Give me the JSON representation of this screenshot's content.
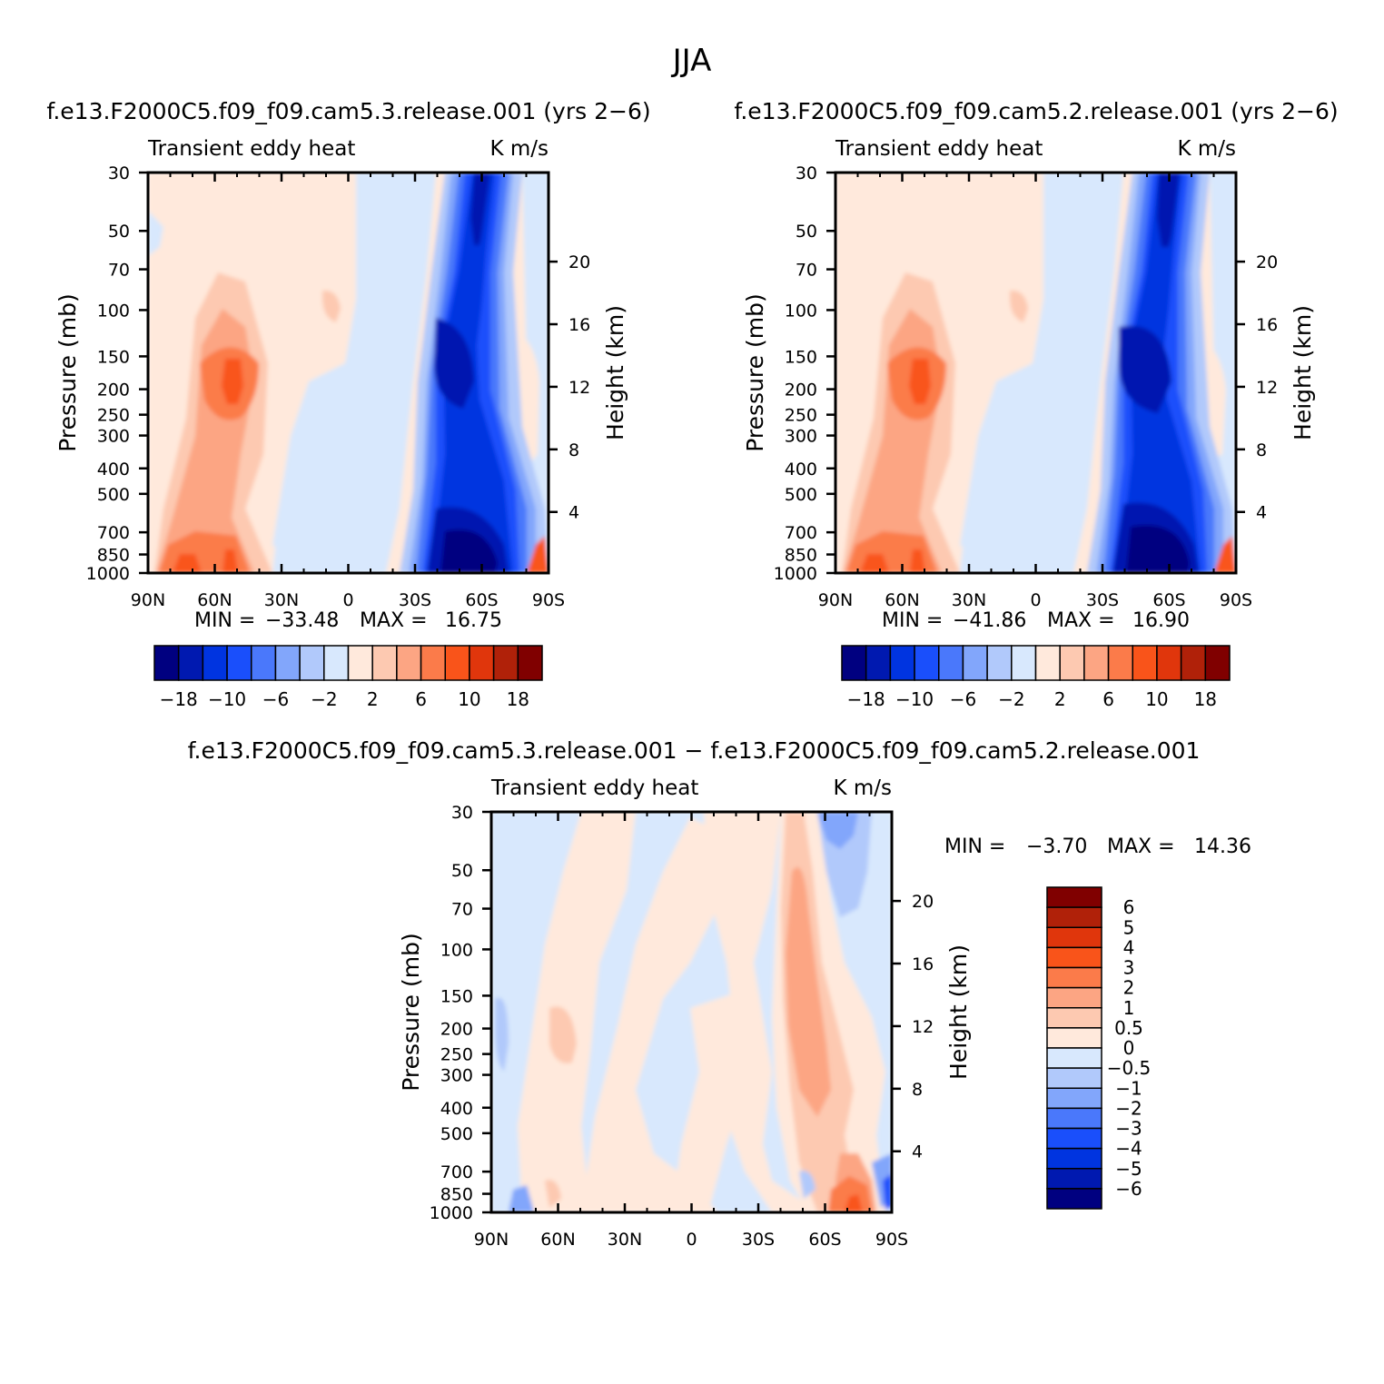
{
  "title": "JJA",
  "colors": {
    "panel_scale": [
      "#000080",
      "#0019b0",
      "#0034e0",
      "#1a4ffb",
      "#4a78fb",
      "#82a6fb",
      "#b1c9fb",
      "#d8e8fd",
      "#ffe9dc",
      "#fdc9b1",
      "#fca583",
      "#fb7b4a",
      "#f9541a",
      "#e0360c",
      "#b02109",
      "#800000"
    ],
    "diff_scale": [
      "#000080",
      "#0019b0",
      "#0034e0",
      "#1a4ffb",
      "#4a78fb",
      "#82a6fb",
      "#b1c9fb",
      "#d8e8fd",
      "#ffe9dc",
      "#fdc9b1",
      "#fca583",
      "#fb7b4a",
      "#f9541a",
      "#e0360c",
      "#b02109",
      "#800000"
    ]
  },
  "chart_data": [
    {
      "type": "heatmap",
      "id": "p1",
      "title": "f.e13.F2000C5.f09_f09.cam5.3.release.001 (yrs 2−6)",
      "label_left": "Transient eddy heat",
      "label_right": "K m/s",
      "ylabel": "Pressure (mb)",
      "ylabel_right": "Height (km)",
      "x_ticks": [
        "90N",
        "60N",
        "30N",
        "0",
        "30S",
        "60S",
        "90S"
      ],
      "y_ticks": [
        "30",
        "50",
        "70",
        "100",
        "150",
        "200",
        "250",
        "300",
        "400",
        "500",
        "700",
        "850",
        "1000"
      ],
      "y_right_ticks": [
        "20",
        "16",
        "12",
        "8",
        "4"
      ],
      "min_label": "MIN =",
      "min_value": "−33.48",
      "max_label": "MAX =",
      "max_value": "16.75",
      "colorbar_labels": [
        "−18",
        "−10",
        "−6",
        "−2",
        "2",
        "6",
        "10",
        "18"
      ]
    },
    {
      "type": "heatmap",
      "id": "p2",
      "title": "f.e13.F2000C5.f09_f09.cam5.2.release.001 (yrs 2−6)",
      "label_left": "Transient eddy heat",
      "label_right": "K m/s",
      "ylabel": "Pressure (mb)",
      "ylabel_right": "Height (km)",
      "x_ticks": [
        "90N",
        "60N",
        "30N",
        "0",
        "30S",
        "60S",
        "90S"
      ],
      "y_ticks": [
        "30",
        "50",
        "70",
        "100",
        "150",
        "200",
        "250",
        "300",
        "400",
        "500",
        "700",
        "850",
        "1000"
      ],
      "y_right_ticks": [
        "20",
        "16",
        "12",
        "8",
        "4"
      ],
      "min_label": "MIN =",
      "min_value": "−41.86",
      "max_label": "MAX =",
      "max_value": "16.90",
      "colorbar_labels": [
        "−18",
        "−10",
        "−6",
        "−2",
        "2",
        "6",
        "10",
        "18"
      ]
    },
    {
      "type": "heatmap",
      "id": "p3",
      "title": "f.e13.F2000C5.f09_f09.cam5.3.release.001 − f.e13.F2000C5.f09_f09.cam5.2.release.001",
      "label_left": "Transient eddy heat",
      "label_right": "K m/s",
      "ylabel": "Pressure (mb)",
      "ylabel_right": "Height (km)",
      "x_ticks": [
        "90N",
        "60N",
        "30N",
        "0",
        "30S",
        "60S",
        "90S"
      ],
      "y_ticks": [
        "30",
        "50",
        "70",
        "100",
        "150",
        "200",
        "250",
        "300",
        "400",
        "500",
        "700",
        "850",
        "1000"
      ],
      "y_right_ticks": [
        "20",
        "16",
        "12",
        "8",
        "4"
      ],
      "min_label": "MIN =",
      "min_value": "−3.70",
      "max_label": "MAX =",
      "max_value": "14.36",
      "colorbar_labels": [
        "6",
        "5",
        "4",
        "3",
        "2",
        "1",
        "0.5",
        "0",
        "−0.5",
        "−1",
        "−2",
        "−3",
        "−4",
        "−5",
        "−6"
      ]
    }
  ]
}
